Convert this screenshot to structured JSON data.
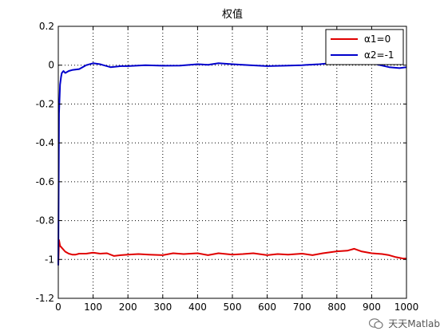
{
  "chart_data": {
    "type": "line",
    "title": "权值",
    "xlabel": "",
    "ylabel": "",
    "xlim": [
      0,
      1000
    ],
    "ylim": [
      -1.2,
      0.2
    ],
    "xticks": [
      0,
      100,
      200,
      300,
      400,
      500,
      600,
      700,
      800,
      900,
      1000
    ],
    "yticks": [
      -1.2,
      -1,
      -0.8,
      -0.6,
      -0.4,
      -0.2,
      0,
      0.2
    ],
    "xtick_labels": [
      "0",
      "100",
      "200",
      "300",
      "400",
      "500",
      "600",
      "700",
      "800",
      "900",
      "1000"
    ],
    "ytick_labels": [
      "-1.2",
      "-1",
      "-0.8",
      "-0.6",
      "-0.4",
      "-0.2",
      "0",
      "0.2"
    ],
    "grid": true,
    "legend_position": "top-right",
    "series": [
      {
        "name": "α1=0",
        "color": "#e00000",
        "x": [
          0,
          2,
          5,
          10,
          20,
          30,
          40,
          50,
          60,
          80,
          100,
          120,
          140,
          160,
          180,
          200,
          230,
          260,
          300,
          330,
          360,
          400,
          430,
          460,
          500,
          530,
          560,
          600,
          630,
          660,
          700,
          730,
          760,
          800,
          830,
          850,
          870,
          900,
          930,
          950,
          970,
          990,
          1000
        ],
        "y": [
          -1.03,
          -0.9,
          -0.93,
          -0.94,
          -0.96,
          -0.97,
          -0.975,
          -0.975,
          -0.97,
          -0.97,
          -0.965,
          -0.97,
          -0.968,
          -0.982,
          -0.978,
          -0.975,
          -0.972,
          -0.975,
          -0.978,
          -0.968,
          -0.972,
          -0.968,
          -0.978,
          -0.968,
          -0.975,
          -0.972,
          -0.968,
          -0.978,
          -0.972,
          -0.975,
          -0.97,
          -0.978,
          -0.968,
          -0.958,
          -0.955,
          -0.945,
          -0.958,
          -0.968,
          -0.972,
          -0.978,
          -0.988,
          -0.995,
          -0.995
        ]
      },
      {
        "name": "α2=-1",
        "color": "#0000cc",
        "x": [
          0,
          2,
          5,
          8,
          10,
          15,
          20,
          30,
          40,
          60,
          80,
          100,
          120,
          150,
          180,
          200,
          250,
          300,
          350,
          400,
          430,
          460,
          500,
          550,
          600,
          650,
          700,
          750,
          780,
          800,
          850,
          900,
          950,
          980,
          1000
        ],
        "y": [
          -1.03,
          -0.25,
          -0.1,
          -0.06,
          -0.04,
          -0.03,
          -0.04,
          -0.03,
          -0.025,
          -0.02,
          0.0,
          0.01,
          0.005,
          -0.01,
          -0.005,
          -0.005,
          0.0,
          -0.003,
          -0.002,
          0.005,
          0.002,
          0.01,
          0.005,
          0.0,
          -0.005,
          -0.003,
          0.0,
          0.005,
          0.01,
          0.012,
          0.02,
          0.01,
          -0.01,
          -0.015,
          -0.01
        ]
      }
    ]
  },
  "watermark": {
    "text": "天天Matlab",
    "icon": "wechat-icon"
  }
}
